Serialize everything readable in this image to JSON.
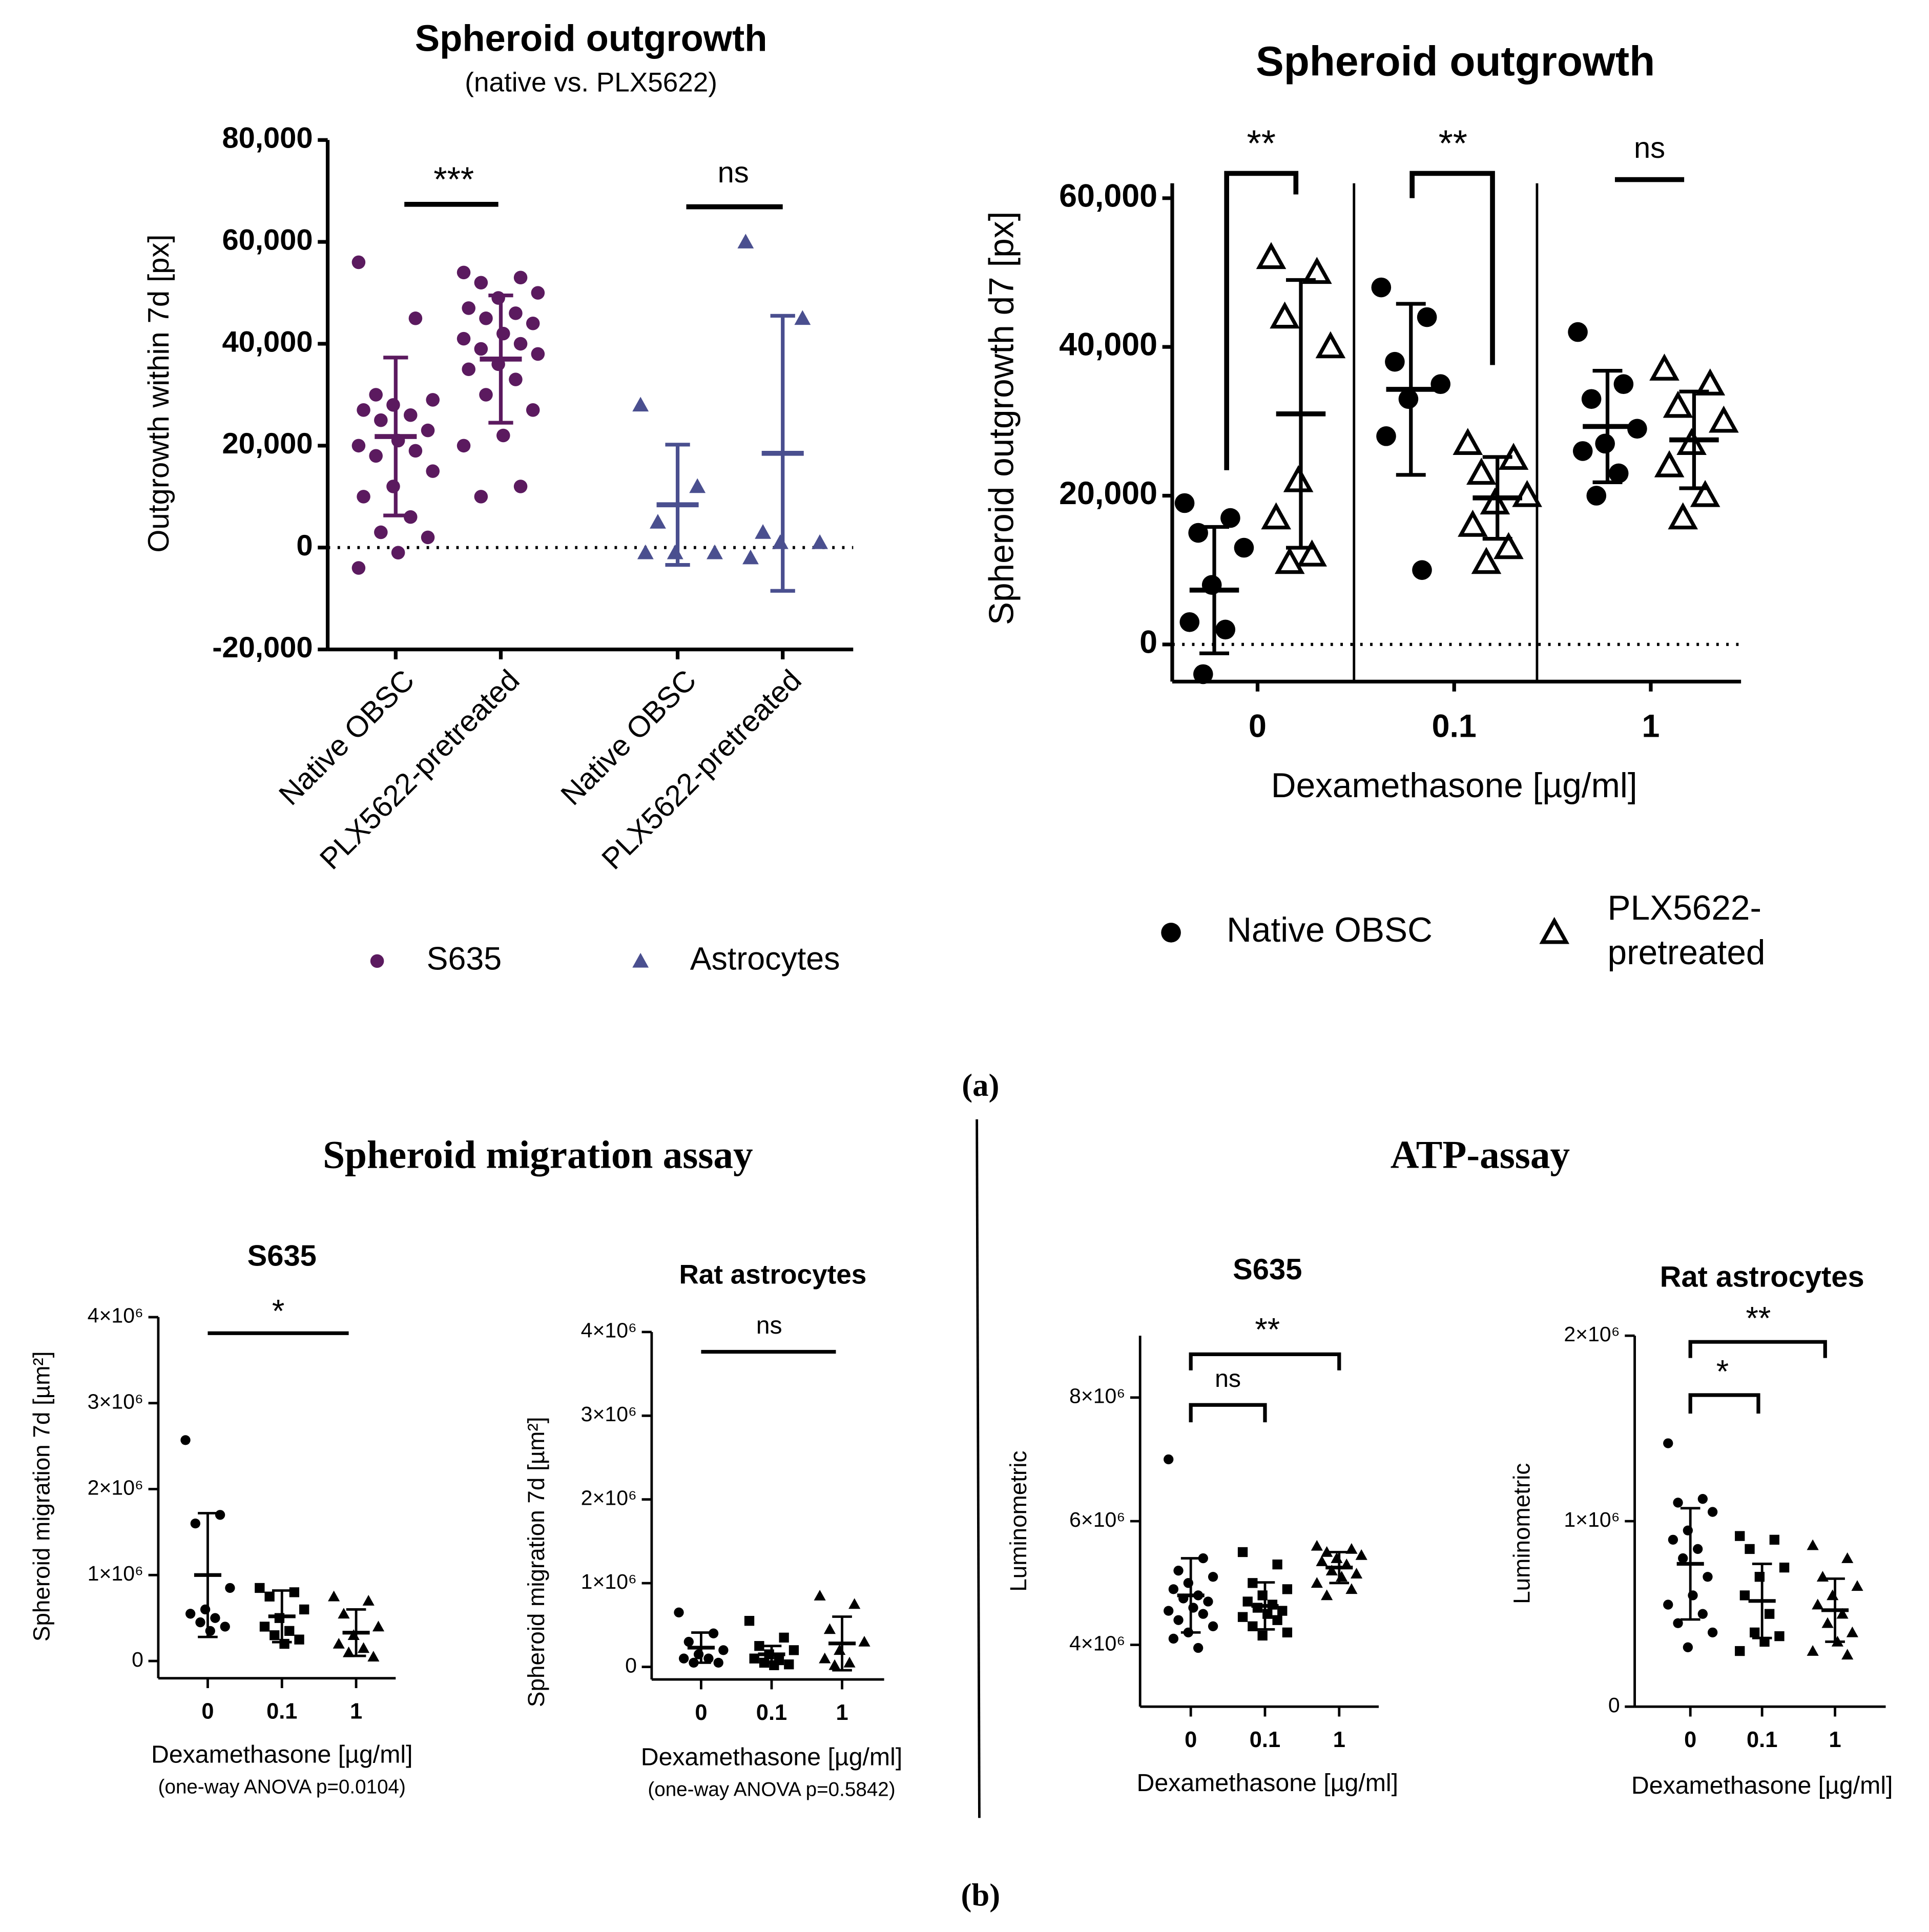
{
  "panel_labels": [
    "(a)",
    "(b)"
  ],
  "section_titles": [
    "Spheroid migration assay",
    "ATP-assay"
  ],
  "chart_data": [
    {
      "type": "strip",
      "title": "Spheroid outgrowth",
      "subtitle": "(native vs. PLX5622)",
      "ylabel": "Outgrowth within 7d [px]",
      "categories": [
        "Native OBSC",
        "PLX5622-pretreated",
        "Native OBSC",
        "PLX5622-pretreated"
      ],
      "ylim": [
        -20000,
        80000
      ],
      "yticks": [
        {
          "value": -20000,
          "label": "-20,000"
        },
        0,
        {
          "value": 20000,
          "label": "20,000"
        },
        {
          "value": 40000,
          "label": "40,000"
        },
        {
          "value": 60000,
          "label": "60,000"
        },
        {
          "value": 80000,
          "label": "80,000"
        }
      ],
      "zero_line": true,
      "significance": [
        "***",
        "ns"
      ],
      "series": [
        {
          "name": "S635",
          "color": "#5b1a5f",
          "marker": "circle",
          "filled": true,
          "values": [
            [
              56000,
              45000,
              30000,
              29000,
              28000,
              27000,
              26000,
              25000,
              23000,
              21000,
              20000,
              19000,
              18000,
              15000,
              12000,
              10000,
              6000,
              3000,
              2000,
              -1000,
              -4000
            ],
            [
              54000,
              53000,
              52000,
              50000,
              49000,
              47000,
              46000,
              45000,
              44000,
              42000,
              41000,
              40000,
              39000,
              38000,
              36000,
              35000,
              33000,
              30000,
              27000,
              22000,
              20000,
              12000,
              10000
            ],
            null,
            null
          ],
          "mean": [
            21800,
            37000,
            null,
            null
          ],
          "sd": [
            15500,
            12500,
            null,
            null
          ]
        },
        {
          "name": "Astrocytes",
          "color": "#4a4f8f",
          "marker": "triangle",
          "filled": true,
          "values": [
            null,
            null,
            [
              28000,
              12000,
              5000,
              -1000,
              -1000,
              -1000
            ],
            [
              60000,
              45000,
              3000,
              1000,
              1000,
              -2000
            ]
          ],
          "mean": [
            null,
            null,
            8400,
            18500
          ],
          "sd": [
            null,
            null,
            11800,
            27000
          ]
        }
      ]
    },
    {
      "type": "strip",
      "title": "Spheroid outgrowth",
      "ylabel": "Spheroid outgrowth d7 [px]",
      "xlabel": "Dexamethasone [µg/ml]",
      "categories": [
        "0",
        "0.1",
        "1"
      ],
      "ylim": [
        -5000,
        62000
      ],
      "yticks": [
        0,
        {
          "value": 20000,
          "label": "20,000"
        },
        {
          "value": 40000,
          "label": "40,000"
        },
        {
          "value": 60000,
          "label": "60,000"
        }
      ],
      "zero_line": true,
      "significance": [
        "**",
        "**",
        "ns"
      ],
      "series": [
        {
          "name": "Native OBSC",
          "color": "#000000",
          "marker": "circle",
          "filled": true,
          "values": [
            [
              19000,
              17000,
              15000,
              13000,
              8000,
              3000,
              2000,
              -4000
            ],
            [
              48000,
              44000,
              38000,
              35000,
              33000,
              28000,
              10000
            ],
            [
              42000,
              35000,
              33000,
              29000,
              27000,
              26000,
              23000,
              20000
            ]
          ],
          "mean": [
            7300,
            34300,
            29300
          ],
          "sd": [
            8500,
            11500,
            7500
          ]
        },
        {
          "name": "PLX5622-pretreated",
          "color": "#000000",
          "marker": "triangle",
          "filled": false,
          "values": [
            [
              52000,
              50000,
              44000,
              40000,
              22000,
              17000,
              12000,
              11000
            ],
            [
              27000,
              25000,
              23000,
              20000,
              19000,
              16000,
              13000,
              11000
            ],
            [
              37000,
              35000,
              32000,
              30000,
              27000,
              24000,
              20000,
              17000
            ]
          ],
          "mean": [
            31000,
            19700,
            27500
          ],
          "sd": [
            18000,
            5500,
            6500
          ]
        }
      ]
    },
    {
      "type": "strip",
      "title": "S635",
      "ylabel": "Spheroid migration 7d [µm²]",
      "xlabel": "Dexamethasone [µg/ml]",
      "note": "(one-way ANOVA p=0.0104)",
      "categories": [
        "0",
        "0.1",
        "1"
      ],
      "ylim": [
        -200000,
        4000000
      ],
      "yticks": [
        0,
        {
          "value": 1000000,
          "label": "1×10⁶"
        },
        {
          "value": 2000000,
          "label": "2×10⁶"
        },
        {
          "value": 3000000,
          "label": "3×10⁶"
        },
        {
          "value": 4000000,
          "label": "4×10⁶"
        }
      ],
      "significance": [
        "*"
      ],
      "series": [
        {
          "color": "#000000",
          "markers": [
            "circle",
            "square",
            "triangle"
          ],
          "filled": true,
          "values": [
            [
              2570000,
              1700000,
              1600000,
              850000,
              600000,
              550000,
              500000,
              450000,
              400000,
              350000
            ],
            [
              850000,
              800000,
              750000,
              600000,
              500000,
              400000,
              350000,
              300000,
              250000,
              200000
            ],
            [
              750000,
              700000,
              550000,
              400000,
              300000,
              200000,
              150000,
              100000,
              50000
            ]
          ],
          "mean": [
            1000000,
            520000,
            330000
          ],
          "sd": [
            720000,
            300000,
            270000
          ]
        }
      ]
    },
    {
      "type": "strip",
      "title": "Rat astrocytes",
      "ylabel": "Spheroid migration 7d [µm²]",
      "xlabel": "Dexamethasone [µg/ml]",
      "note": "(one-way ANOVA p=0.5842)",
      "categories": [
        "0",
        "0.1",
        "1"
      ],
      "ylim": [
        -150000,
        4000000
      ],
      "yticks": [
        0,
        {
          "value": 1000000,
          "label": "1×10⁶"
        },
        {
          "value": 2000000,
          "label": "2×10⁶"
        },
        {
          "value": 3000000,
          "label": "3×10⁶"
        },
        {
          "value": 4000000,
          "label": "4×10⁶"
        }
      ],
      "significance": [
        "ns"
      ],
      "series": [
        {
          "color": "#000000",
          "markers": [
            "circle",
            "square",
            "triangle"
          ],
          "filled": true,
          "values": [
            [
              650000,
              400000,
              300000,
              200000,
              150000,
              100000,
              100000,
              50000,
              50000
            ],
            [
              550000,
              350000,
              250000,
              200000,
              150000,
              100000,
              80000,
              50000,
              30000,
              20000
            ],
            [
              850000,
              750000,
              450000,
              300000,
              200000,
              100000,
              50000,
              20000
            ]
          ],
          "mean": [
            230000,
            150000,
            280000
          ],
          "sd": [
            180000,
            100000,
            320000
          ]
        }
      ]
    },
    {
      "type": "strip",
      "title": "S635",
      "ylabel": "Luminometric",
      "xlabel": "Dexamethasone [µg/ml]",
      "categories": [
        "0",
        "0.1",
        "1"
      ],
      "ylim": [
        3000000,
        9000000
      ],
      "yticks": [
        {
          "value": 4000000,
          "label": "4×10⁶"
        },
        {
          "value": 6000000,
          "label": "6×10⁶"
        },
        {
          "value": 8000000,
          "label": "8×10⁶"
        }
      ],
      "significance": [
        "**",
        "ns"
      ],
      "series": [
        {
          "color": "#000000",
          "markers": [
            "circle",
            "square",
            "triangle"
          ],
          "filled": true,
          "values": [
            [
              7000000,
              5400000,
              5200000,
              5100000,
              5000000,
              4900000,
              4800000,
              4750000,
              4700000,
              4600000,
              4550000,
              4500000,
              4400000,
              4300000,
              4200000,
              4100000,
              3950000
            ],
            [
              5500000,
              5300000,
              5000000,
              4900000,
              4800000,
              4700000,
              4650000,
              4600000,
              4550000,
              4500000,
              4450000,
              4400000,
              4300000,
              4200000,
              4150000
            ],
            [
              5600000,
              5550000,
              5500000,
              5450000,
              5400000,
              5350000,
              5300000,
              5200000,
              5150000,
              5100000,
              5000000,
              4900000,
              4800000
            ]
          ],
          "mean": [
            4800000,
            4630000,
            5250000
          ],
          "sd": [
            600000,
            380000,
            250000
          ]
        }
      ]
    },
    {
      "type": "strip",
      "title": "Rat astrocytes",
      "ylabel": "Luminometric",
      "xlabel": "Dexamethasone [µg/ml]",
      "categories": [
        "0",
        "0.1",
        "1"
      ],
      "ylim": [
        0,
        2000000
      ],
      "yticks": [
        0,
        {
          "value": 1000000,
          "label": "1×10⁶"
        },
        {
          "value": 2000000,
          "label": "2×10⁶"
        }
      ],
      "significance": [
        "**",
        "*"
      ],
      "series": [
        {
          "color": "#000000",
          "markers": [
            "circle",
            "square",
            "triangle"
          ],
          "filled": true,
          "values": [
            [
              1420000,
              1120000,
              1100000,
              1050000,
              950000,
              900000,
              850000,
              800000,
              700000,
              600000,
              550000,
              500000,
              450000,
              400000,
              320000
            ],
            [
              920000,
              900000,
              850000,
              750000,
              700000,
              600000,
              500000,
              400000,
              380000,
              350000,
              300000
            ],
            [
              870000,
              800000,
              700000,
              650000,
              600000,
              550000,
              500000,
              450000,
              400000,
              350000,
              300000,
              280000
            ]
          ],
          "mean": [
            770000,
            570000,
            520000
          ],
          "sd": [
            300000,
            200000,
            170000
          ]
        }
      ]
    }
  ]
}
